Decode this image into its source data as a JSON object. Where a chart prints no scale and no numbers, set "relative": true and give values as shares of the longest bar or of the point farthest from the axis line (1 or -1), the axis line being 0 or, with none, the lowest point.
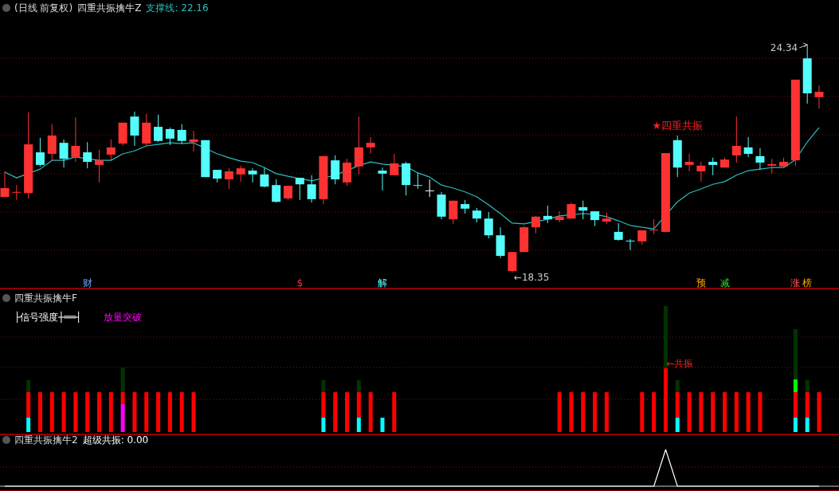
{
  "chart_data": [
    {
      "type": "candlestick",
      "title": "(日线 前复权)",
      "subtitle": "四重共振擒牛Z",
      "legend": "top left",
      "categories": [
        null,
        null,
        null,
        null,
        null,
        null,
        null,
        null,
        null,
        null,
        null,
        null,
        null,
        null,
        null,
        null,
        null,
        null,
        null,
        null,
        null,
        null,
        null,
        null,
        null,
        null,
        null,
        null,
        null,
        null,
        null,
        null,
        null,
        null,
        null,
        null,
        null,
        null,
        null,
        null,
        null,
        null,
        null,
        null,
        null,
        null,
        null,
        null,
        null,
        null,
        null,
        null,
        null,
        null,
        null,
        null,
        null,
        null,
        null,
        null,
        null,
        null,
        null,
        null,
        null,
        null,
        null,
        null,
        null,
        null
      ],
      "ohlc": [
        [
          20.34,
          21.01,
          20.34,
          20.57
        ],
        [
          20.47,
          20.65,
          20.26,
          20.47
        ],
        [
          20.44,
          22.56,
          20.3,
          21.72
        ],
        [
          21.51,
          21.89,
          21.14,
          21.18
        ],
        [
          21.47,
          22.25,
          21.28,
          21.95
        ],
        [
          21.76,
          21.85,
          21.11,
          21.34
        ],
        [
          21.39,
          22.43,
          21.26,
          21.68
        ],
        [
          21.51,
          21.78,
          21.09,
          21.26
        ],
        [
          21.18,
          21.58,
          20.72,
          21.3
        ],
        [
          21.45,
          21.85,
          21.32,
          21.64
        ],
        [
          21.74,
          22.29,
          21.68,
          22.29
        ],
        [
          22.45,
          22.58,
          21.68,
          21.95
        ],
        [
          21.74,
          22.52,
          21.68,
          22.29
        ],
        [
          22.18,
          22.5,
          21.78,
          21.81
        ],
        [
          22.12,
          22.16,
          21.7,
          21.87
        ],
        [
          22.1,
          22.25,
          21.74,
          21.81
        ],
        [
          21.78,
          22.08,
          21.53,
          21.85
        ],
        [
          21.83,
          21.83,
          20.86,
          20.86
        ],
        [
          21.05,
          21.05,
          20.72,
          20.82
        ],
        [
          20.8,
          21.09,
          20.55,
          21.01
        ],
        [
          20.93,
          21.16,
          20.74,
          21.09
        ],
        [
          21.03,
          21.09,
          20.72,
          20.93
        ],
        [
          20.93,
          21.11,
          20.59,
          20.61
        ],
        [
          20.65,
          20.8,
          20.19,
          20.21
        ],
        [
          20.3,
          20.63,
          20.26,
          20.63
        ],
        [
          20.84,
          20.84,
          20.26,
          20.67
        ],
        [
          20.67,
          20.91,
          20.19,
          20.28
        ],
        [
          20.28,
          21.41,
          20.15,
          21.41
        ],
        [
          21.3,
          21.43,
          20.67,
          20.8
        ],
        [
          20.72,
          21.34,
          20.63,
          21.24
        ],
        [
          21.14,
          22.45,
          20.93,
          21.64
        ],
        [
          21.64,
          21.91,
          21.47,
          21.76
        ],
        [
          21.03,
          21.11,
          20.51,
          20.95
        ],
        [
          20.91,
          21.47,
          20.91,
          21.22
        ],
        [
          21.22,
          21.26,
          20.38,
          20.65
        ],
        [
          20.65,
          20.97,
          20.55,
          20.65
        ],
        [
          20.51,
          20.8,
          20.34,
          20.51
        ],
        [
          20.4,
          20.47,
          19.75,
          19.82
        ],
        [
          19.75,
          20.24,
          19.63,
          20.24
        ],
        [
          20.15,
          20.26,
          19.9,
          20.03
        ],
        [
          19.98,
          20.05,
          19.67,
          19.77
        ],
        [
          19.77,
          19.94,
          19.25,
          19.33
        ],
        [
          19.33,
          19.54,
          18.73,
          18.79
        ],
        [
          18.39,
          18.89,
          18.35,
          18.89
        ],
        [
          18.89,
          19.57,
          18.89,
          19.54
        ],
        [
          19.54,
          19.84,
          19.38,
          19.82
        ],
        [
          19.84,
          20.11,
          19.65,
          19.75
        ],
        [
          19.73,
          19.96,
          19.67,
          19.82
        ],
        [
          19.77,
          20.19,
          19.77,
          20.15
        ],
        [
          20.07,
          20.24,
          19.75,
          19.98
        ],
        [
          19.96,
          19.96,
          19.57,
          19.73
        ],
        [
          19.69,
          19.92,
          19.63,
          19.77
        ],
        [
          19.42,
          19.65,
          19.19,
          19.21
        ],
        [
          19.19,
          19.23,
          18.94,
          19.19
        ],
        [
          19.17,
          19.46,
          19.08,
          19.46
        ],
        [
          19.48,
          19.75,
          19.36,
          19.48
        ],
        [
          19.42,
          21.49,
          19.4,
          21.49
        ],
        [
          21.83,
          21.95,
          20.86,
          21.11
        ],
        [
          21.18,
          21.47,
          21.01,
          21.26
        ],
        [
          21.01,
          21.26,
          20.74,
          21.16
        ],
        [
          21.26,
          21.37,
          20.91,
          21.18
        ],
        [
          21.11,
          21.37,
          21.11,
          21.32
        ],
        [
          21.43,
          22.45,
          21.24,
          21.68
        ],
        [
          21.64,
          21.91,
          21.39,
          21.47
        ],
        [
          21.41,
          21.62,
          21.05,
          21.24
        ],
        [
          21.16,
          21.34,
          20.95,
          21.2
        ],
        [
          21.14,
          21.37,
          21.14,
          21.26
        ],
        [
          21.3,
          23.42,
          21.16,
          23.42
        ],
        [
          23.98,
          24.34,
          22.79,
          23.06
        ],
        [
          22.96,
          23.27,
          22.66,
          23.1
        ]
      ],
      "colors": [
        "#ff3232",
        "#ff3232",
        "#ff3232",
        "#54fcfc",
        "#ff3232",
        "#54fcfc",
        "#ff3232",
        "#54fcfc",
        "#ff3232",
        "#ff3232",
        "#ff3232",
        "#54fcfc",
        "#ff3232",
        "#54fcfc",
        "#54fcfc",
        "#54fcfc",
        "#ff3232",
        "#54fcfc",
        "#54fcfc",
        "#ff3232",
        "#ff3232",
        "#54fcfc",
        "#54fcfc",
        "#54fcfc",
        "#ff3232",
        "#54fcfc",
        "#54fcfc",
        "#ff3232",
        "#54fcfc",
        "#ff3232",
        "#ff3232",
        "#ff3232",
        "#54fcfc",
        "#ff3232",
        "#54fcfc",
        "#54fcfc",
        "#ffffff",
        "#54fcfc",
        "#ff3232",
        "#54fcfc",
        "#54fcfc",
        "#54fcfc",
        "#54fcfc",
        "#ff3232",
        "#ff3232",
        "#ff3232",
        "#54fcfc",
        "#ff3232",
        "#ff3232",
        "#54fcfc",
        "#54fcfc",
        "#ff3232",
        "#54fcfc",
        "#54fcfc",
        "#ff3232",
        "#ff3232",
        "#ff3232",
        "#54fcfc",
        "#ff3232",
        "#ff3232",
        "#54fcfc",
        "#ff3232",
        "#ff3232",
        "#54fcfc",
        "#54fcfc",
        "#ff3232",
        "#ff3232",
        "#ff3232",
        "#54fcfc",
        "#ff3232"
      ],
      "series": [
        {
          "type": "line",
          "name": "支撑线: 22.16",
          "color": "#2fbcbc",
          "values": [
            20.99,
            20.84,
            null,
            21.07,
            21.3,
            21.3,
            21.39,
            21.34,
            21.3,
            21.3,
            21.47,
            21.55,
            21.68,
            21.72,
            21.76,
            21.74,
            21.76,
            null,
            21.47,
            21.37,
            21.28,
            21.24,
            21.11,
            20.95,
            20.88,
            20.82,
            20.76,
            null,
            20.91,
            null,
            21.16,
            21.26,
            21.2,
            null,
            21.14,
            20.97,
            20.86,
            20.65,
            20.57,
            20.47,
            20.34,
            20.13,
            19.9,
            19.65,
            19.63,
            null,
            19.75,
            19.84,
            null,
            19.9,
            19.88,
            19.82,
            19.71,
            19.59,
            19.54,
            19.5,
            null,
            20.21,
            20.44,
            20.55,
            20.67,
            20.74,
            20.91,
            21.03,
            21.07,
            21.11,
            21.11,
            21.32,
            21.78,
            22.16
          ]
        }
      ],
      "ref_lines": [
        {
          "axis": "y",
          "value": 23.98,
          "color": "#8a1010",
          "line_style": "dotted"
        },
        {
          "axis": "y",
          "value": 22.98,
          "color": "#8a1010",
          "line_style": "dotted"
        },
        {
          "axis": "y",
          "value": 21.97,
          "color": "#8a1010",
          "line_style": "dotted"
        },
        {
          "axis": "y",
          "value": 20.95,
          "color": "#8a1010",
          "line_style": "dotted"
        },
        {
          "axis": "y",
          "value": 19.94,
          "color": "#8a1010",
          "line_style": "dotted"
        },
        {
          "axis": "y",
          "value": 18.94,
          "color": "#8a1010",
          "line_style": "dotted"
        }
      ],
      "annotations": [
        "24.34",
        "←18.35",
        "★四重共振",
        "财",
        "$",
        "解",
        "预",
        "减",
        "涨",
        "榜"
      ]
    },
    {
      "type": "bar",
      "title": "四重共振擒牛F",
      "stacked": true,
      "relative": true,
      "categories": [
        null,
        null,
        null,
        null,
        null,
        null,
        null,
        null,
        null,
        null,
        null,
        null,
        null,
        null,
        null,
        null,
        null,
        null,
        null,
        null,
        null,
        null,
        null,
        null,
        null,
        null,
        null,
        null,
        null,
        null,
        null,
        null,
        null,
        null,
        null,
        null,
        null,
        null,
        null,
        null,
        null,
        null,
        null,
        null,
        null,
        null,
        null,
        null,
        null,
        null,
        null,
        null,
        null,
        null,
        null,
        null,
        null,
        null,
        null,
        null,
        null,
        null,
        null,
        null,
        null,
        null,
        null,
        null,
        null,
        null
      ],
      "series": [
        {
          "color": "#00ffff",
          "values": [
            null,
            null,
            0.114,
            null,
            null,
            null,
            null,
            null,
            null,
            null,
            null,
            null,
            null,
            null,
            null,
            null,
            null,
            null,
            null,
            null,
            null,
            null,
            null,
            null,
            null,
            null,
            null,
            0.114,
            null,
            null,
            0.114,
            null,
            0.114,
            null,
            null,
            null,
            null,
            null,
            null,
            null,
            null,
            null,
            null,
            null,
            null,
            null,
            null,
            null,
            null,
            null,
            null,
            null,
            null,
            null,
            null,
            null,
            null,
            0.114,
            null,
            null,
            null,
            null,
            null,
            null,
            null,
            null,
            null,
            0.114,
            0.114,
            null
          ]
        },
        {
          "color": "#ff00ff",
          "values": [
            null,
            null,
            null,
            null,
            null,
            null,
            null,
            null,
            null,
            null,
            0.222,
            null,
            null,
            null,
            null,
            null,
            null,
            null,
            null,
            null,
            null,
            null,
            null,
            null,
            null,
            null,
            null,
            null,
            null,
            null,
            null,
            null,
            null,
            null,
            null,
            null,
            null,
            null,
            null,
            null,
            null,
            null,
            null,
            null,
            null,
            null,
            null,
            null,
            null,
            null,
            null,
            null,
            null,
            null,
            null,
            null,
            null,
            null,
            null,
            null,
            null,
            null,
            null,
            null,
            null,
            null,
            null,
            null,
            null,
            null
          ]
        },
        {
          "color": "#ff0000",
          "values": [
            null,
            null,
            0.203,
            0.316,
            0.316,
            0.316,
            0.316,
            0.316,
            0.316,
            0.316,
            0.095,
            0.316,
            0.316,
            0.316,
            0.316,
            0.316,
            0.316,
            null,
            null,
            null,
            null,
            null,
            null,
            null,
            null,
            null,
            null,
            0.203,
            0.316,
            0.316,
            0.203,
            0.316,
            null,
            0.316,
            null,
            null,
            null,
            null,
            null,
            null,
            null,
            null,
            null,
            null,
            null,
            null,
            null,
            0.316,
            0.316,
            0.316,
            0.316,
            0.316,
            null,
            null,
            0.316,
            0.316,
            0.506,
            0.203,
            0.316,
            0.316,
            0.316,
            0.316,
            0.316,
            0.316,
            0.316,
            null,
            null,
            0.203,
            0.203,
            0.316
          ]
        },
        {
          "color": "#00ff00",
          "values": [
            null,
            null,
            null,
            null,
            null,
            null,
            null,
            null,
            null,
            null,
            null,
            null,
            null,
            null,
            null,
            null,
            null,
            null,
            null,
            null,
            null,
            null,
            null,
            null,
            null,
            null,
            null,
            null,
            null,
            null,
            null,
            null,
            null,
            null,
            null,
            null,
            null,
            null,
            null,
            null,
            null,
            null,
            null,
            null,
            null,
            null,
            null,
            null,
            null,
            null,
            null,
            null,
            null,
            null,
            null,
            null,
            null,
            null,
            null,
            null,
            null,
            null,
            null,
            null,
            null,
            null,
            null,
            0.101,
            null,
            null
          ]
        },
        {
          "color": "#003300",
          "values": [
            null,
            null,
            0.095,
            null,
            null,
            null,
            null,
            null,
            null,
            null,
            0.196,
            null,
            null,
            null,
            null,
            null,
            null,
            null,
            null,
            null,
            null,
            null,
            null,
            null,
            null,
            null,
            null,
            0.095,
            null,
            null,
            0.095,
            null,
            null,
            null,
            null,
            null,
            null,
            null,
            null,
            null,
            null,
            null,
            null,
            null,
            null,
            null,
            null,
            null,
            null,
            null,
            null,
            null,
            null,
            null,
            null,
            null,
            0.494,
            0.095,
            null,
            null,
            null,
            null,
            null,
            null,
            null,
            null,
            null,
            0.399,
            0.095,
            null
          ]
        }
      ],
      "ref_lines": [
        {
          "axis": "y",
          "value": 0.753,
          "color": "#8a1010",
          "line_style": "dotted"
        },
        {
          "axis": "y",
          "value": 0.513,
          "color": "#8a1010",
          "line_style": "dotted"
        },
        {
          "axis": "y",
          "value": 0.259,
          "color": "#8a1010",
          "line_style": "dotted"
        }
      ],
      "annotations": [
        "├信号强度┼══┤",
        "放量突破",
        "←共振"
      ]
    },
    {
      "type": "line",
      "title": "四重共振擒牛2",
      "relative": true,
      "legend": "top left",
      "ref_lines": [
        {
          "axis": "y",
          "value": 0.523,
          "color": "#8a1010",
          "line_style": "dotted"
        }
      ],
      "categories": [
        null,
        null,
        null,
        null,
        null,
        null,
        null,
        null,
        null,
        null,
        null,
        null,
        null,
        null,
        null,
        null,
        null,
        null,
        null,
        null,
        null,
        null,
        null,
        null,
        null,
        null,
        null,
        null,
        null,
        null,
        null,
        null,
        null,
        null,
        null,
        null,
        null,
        null,
        null,
        null,
        null,
        null,
        null,
        null,
        null,
        null,
        null,
        null,
        null,
        null,
        null,
        null,
        null,
        null,
        null,
        null,
        null,
        null,
        null,
        null,
        null,
        null,
        null,
        null,
        null,
        null,
        null,
        null,
        null,
        null
      ],
      "series": [
        {
          "name": "超级共振: 0.00",
          "color": "#ffffff",
          "values": [
            0,
            0,
            0,
            0,
            0,
            0,
            0,
            0,
            0,
            0,
            0,
            0,
            0,
            0,
            0,
            0,
            0,
            0,
            0,
            0,
            0,
            0,
            0,
            0,
            0,
            0,
            0,
            0,
            0,
            0,
            0,
            0,
            0,
            0,
            0,
            0,
            0,
            0,
            0,
            0,
            0,
            0,
            0,
            0,
            0,
            0,
            0,
            0,
            0,
            0,
            0,
            0,
            0,
            0,
            0,
            0,
            1,
            0,
            0,
            0,
            0,
            0,
            0,
            0,
            0,
            0,
            0,
            0,
            0,
            0
          ]
        }
      ]
    }
  ]
}
